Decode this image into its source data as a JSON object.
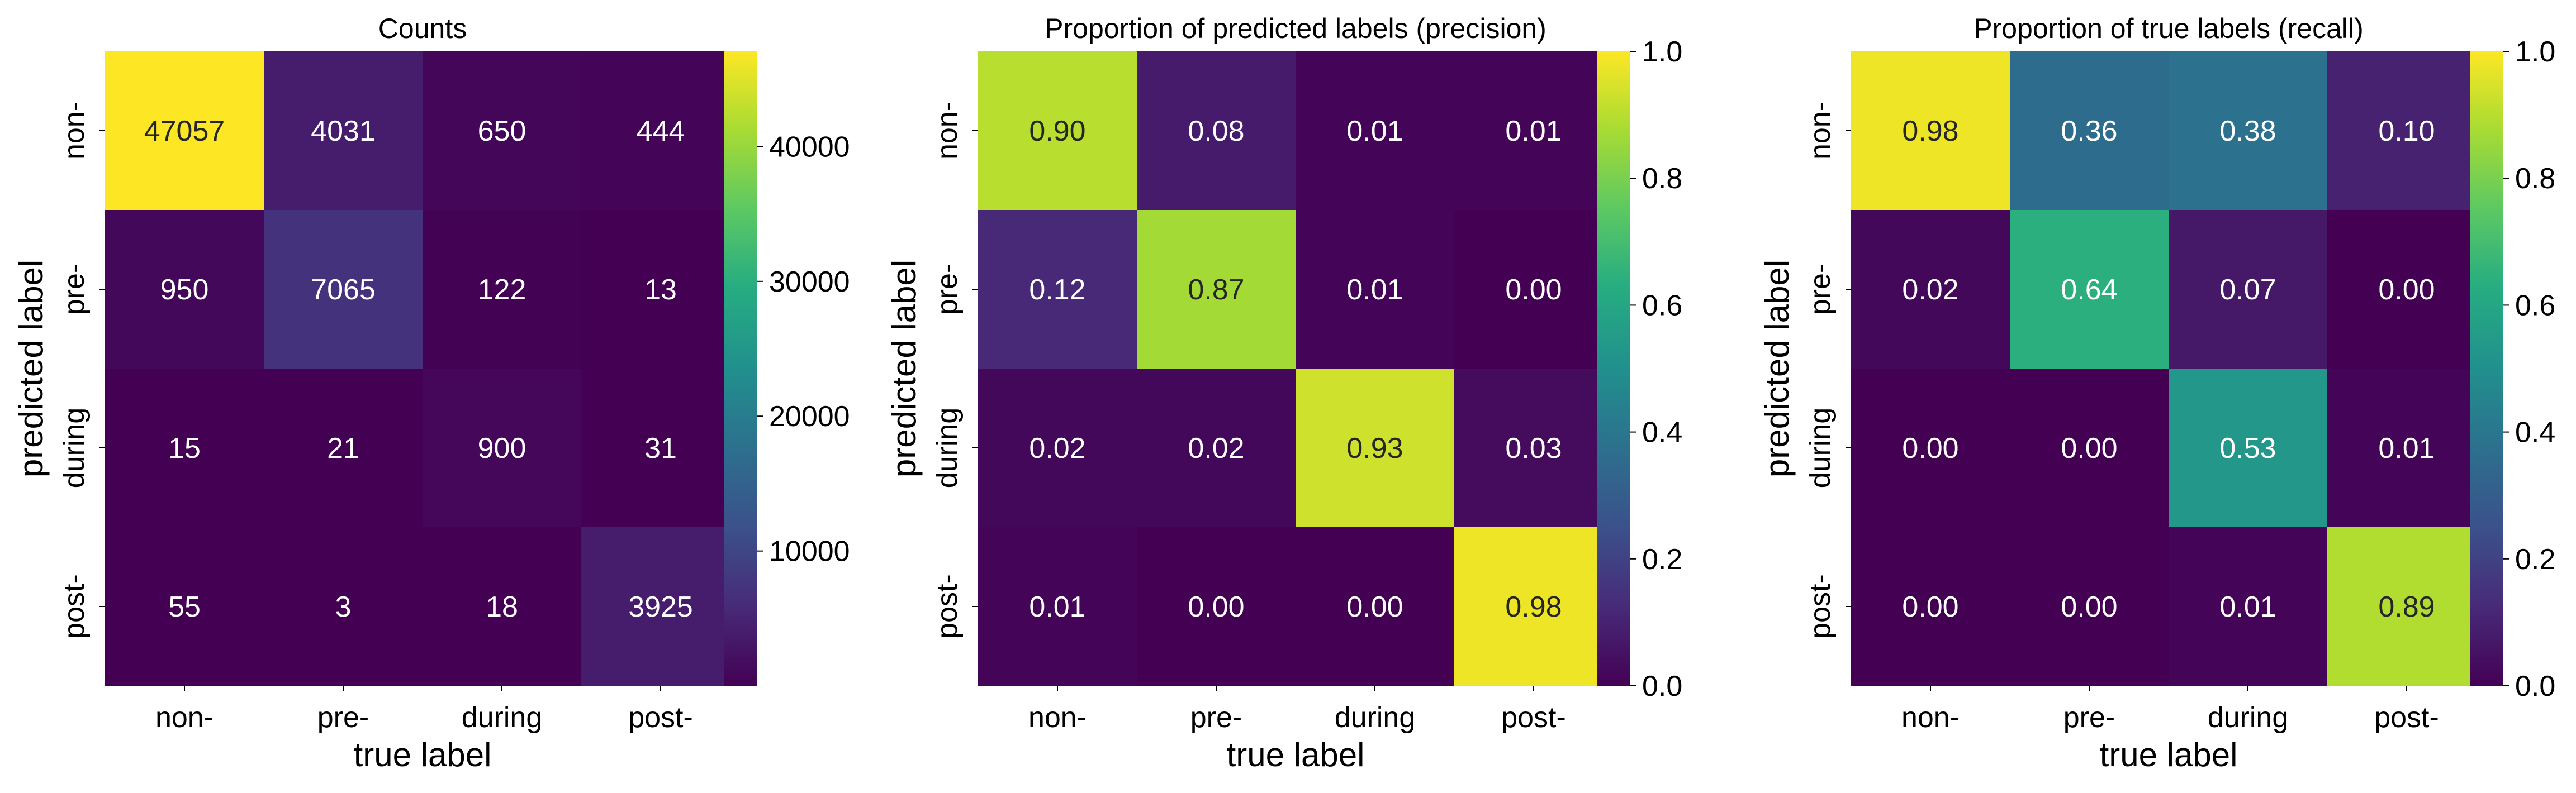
{
  "chart_data": [
    {
      "type": "heatmap",
      "title": "Counts",
      "xlabel": "true label",
      "ylabel": "predicted label",
      "categories_x": [
        "non-",
        "pre-",
        "during",
        "post-"
      ],
      "categories_y": [
        "non-",
        "pre-",
        "during",
        "post-"
      ],
      "values": [
        [
          47057,
          4031,
          650,
          444
        ],
        [
          950,
          7065,
          122,
          13
        ],
        [
          15,
          21,
          900,
          31
        ],
        [
          55,
          3,
          18,
          3925
        ]
      ],
      "labels": [
        [
          "47057",
          "4031",
          "650",
          "444"
        ],
        [
          "950",
          "7065",
          "122",
          "13"
        ],
        [
          "15",
          "21",
          "900",
          "31"
        ],
        [
          "55",
          "3",
          "18",
          "3925"
        ]
      ],
      "colormap": "viridis",
      "colorbar": {
        "range": [
          3,
          47057
        ],
        "ticks": [
          10000,
          20000,
          30000,
          40000
        ],
        "tick_labels": [
          "10000",
          "20000",
          "30000",
          "40000"
        ]
      }
    },
    {
      "type": "heatmap",
      "title": "Proportion of predicted labels (precision)",
      "xlabel": "true label",
      "ylabel": "predicted label",
      "categories_x": [
        "non-",
        "pre-",
        "during",
        "post-"
      ],
      "categories_y": [
        "non-",
        "pre-",
        "during",
        "post-"
      ],
      "values": [
        [
          0.9,
          0.08,
          0.01,
          0.01
        ],
        [
          0.12,
          0.87,
          0.01,
          0.0
        ],
        [
          0.02,
          0.02,
          0.93,
          0.03
        ],
        [
          0.01,
          0.0,
          0.0,
          0.98
        ]
      ],
      "labels": [
        [
          "0.90",
          "0.08",
          "0.01",
          "0.01"
        ],
        [
          "0.12",
          "0.87",
          "0.01",
          "0.00"
        ],
        [
          "0.02",
          "0.02",
          "0.93",
          "0.03"
        ],
        [
          "0.01",
          "0.00",
          "0.00",
          "0.98"
        ]
      ],
      "colormap": "viridis",
      "colorbar": {
        "range": [
          0,
          1
        ],
        "ticks": [
          0,
          0.2,
          0.4,
          0.6,
          0.8,
          1.0
        ],
        "tick_labels": [
          "0.0",
          "0.2",
          "0.4",
          "0.6",
          "0.8",
          "1.0"
        ]
      }
    },
    {
      "type": "heatmap",
      "title": "Proportion of true labels (recall)",
      "xlabel": "true label",
      "ylabel": "predicted label",
      "categories_x": [
        "non-",
        "pre-",
        "during",
        "post-"
      ],
      "categories_y": [
        "non-",
        "pre-",
        "during",
        "post-"
      ],
      "values": [
        [
          0.98,
          0.36,
          0.38,
          0.1
        ],
        [
          0.02,
          0.64,
          0.07,
          0.0
        ],
        [
          0.0,
          0.0,
          0.53,
          0.01
        ],
        [
          0.0,
          0.0,
          0.01,
          0.89
        ]
      ],
      "labels": [
        [
          "0.98",
          "0.36",
          "0.38",
          "0.10"
        ],
        [
          "0.02",
          "0.64",
          "0.07",
          "0.00"
        ],
        [
          "0.00",
          "0.00",
          "0.53",
          "0.01"
        ],
        [
          "0.00",
          "0.00",
          "0.01",
          "0.89"
        ]
      ],
      "colormap": "viridis",
      "colorbar": {
        "range": [
          0,
          1
        ],
        "ticks": [
          0,
          0.2,
          0.4,
          0.6,
          0.8,
          1.0
        ],
        "tick_labels": [
          "0.0",
          "0.2",
          "0.4",
          "0.6",
          "0.8",
          "1.0"
        ]
      }
    }
  ]
}
